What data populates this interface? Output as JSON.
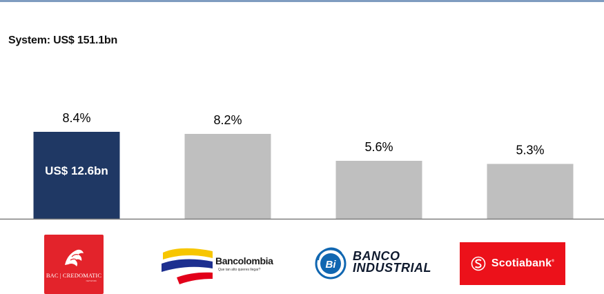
{
  "header": {
    "system_label": "System: US$ 151.1bn"
  },
  "chart_data": {
    "type": "bar",
    "categories": [
      "BAC Credomatic",
      "Bancolombia",
      "Banco Industrial",
      "Scotiabank"
    ],
    "values": [
      8.4,
      8.2,
      5.6,
      5.3
    ],
    "value_labels": [
      "8.4%",
      "8.2%",
      "5.6%",
      "5.3%"
    ],
    "bar_annotation": {
      "index": 0,
      "text": "US$ 12.6bn"
    },
    "unit": "%",
    "ylim": [
      0,
      8.4
    ],
    "grid": false,
    "colors": {
      "highlight": "#1f3864",
      "other": "#bfbfbf",
      "baseline": "#7f7f7f"
    }
  },
  "logos": {
    "bac": {
      "text": "BAC | CREDOMATIC",
      "sub": "NETWORK",
      "icon": "lion-icon",
      "color": "#e3232b"
    },
    "bancolombia": {
      "text": "Bancolombia",
      "tagline": "Que tan alto quieres llegar?",
      "icon": "bancolombia-stripes-icon"
    },
    "banco_industrial": {
      "text_line1": "BANCO",
      "text_line2": "INDUSTRIAL",
      "monogram": "Bi",
      "icon": "bi-circle-icon"
    },
    "scotiabank": {
      "text": "Scotiabank",
      "reg": "®",
      "icon": "globe-s-icon",
      "color": "#ec111a"
    }
  }
}
